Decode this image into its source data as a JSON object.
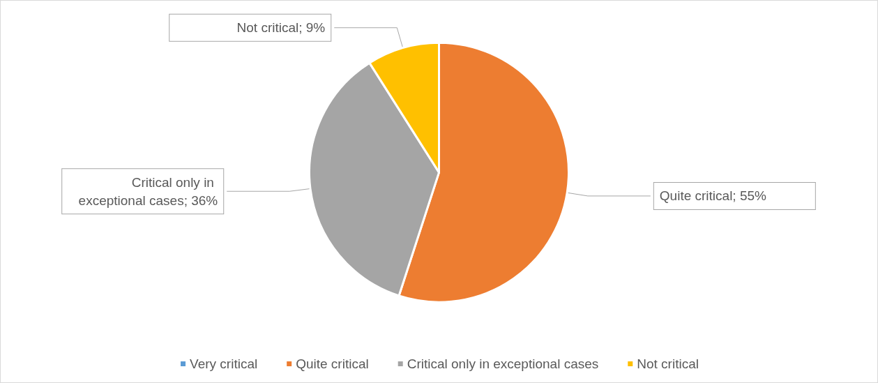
{
  "chart_data": {
    "type": "pie",
    "categories": [
      "Very critical",
      "Quite critical",
      "Critical only in exceptional cases",
      "Not critical"
    ],
    "values": [
      0,
      55,
      36,
      9
    ],
    "colors": [
      "#5b9bd5",
      "#ed7d31",
      "#a5a5a5",
      "#ffc000"
    ],
    "value_labels": [
      null,
      "Quite critical; 55%",
      "Critical only in exceptional cases; 36%",
      "Not critical; 9%"
    ],
    "legend": "bottom"
  }
}
